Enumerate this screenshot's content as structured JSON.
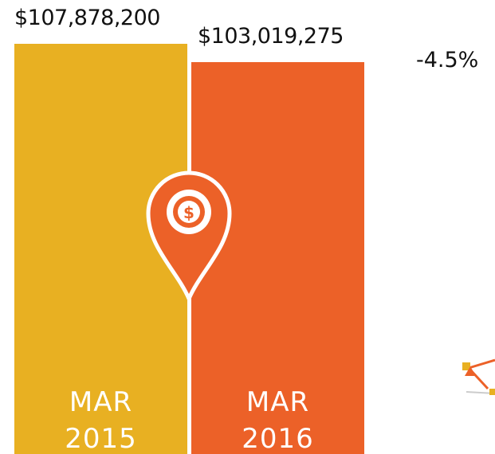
{
  "chart_data": {
    "type": "bar",
    "categories": [
      "MAR 2015",
      "MAR 2016"
    ],
    "values": [
      107878200,
      103019275
    ],
    "value_labels": [
      "$107,878,200",
      "$103,019,275"
    ],
    "colors": [
      "#e8b022",
      "#ec6128"
    ],
    "annotation": "-4.5%"
  }
}
